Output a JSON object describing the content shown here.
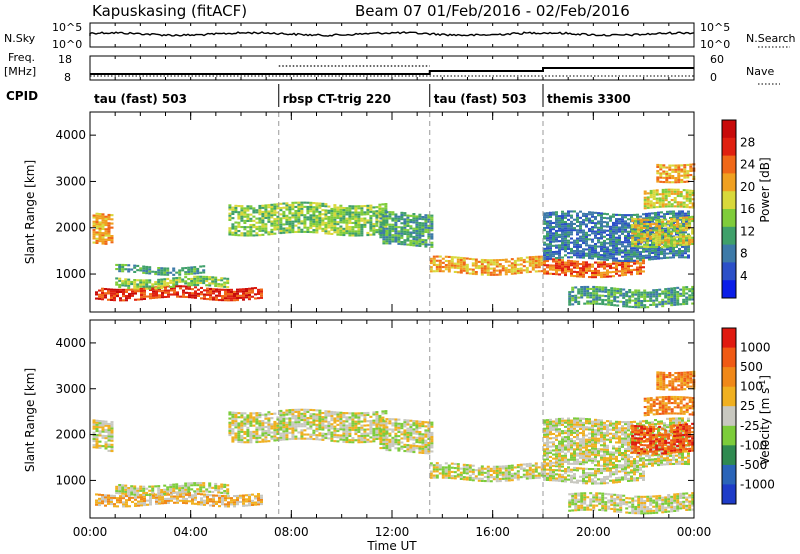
{
  "header": {
    "station": "Kapuskasing (fitACF)",
    "beam": "Beam 07",
    "date_range": "01/Feb/2016 - 02/Feb/2016"
  },
  "top_panel": {
    "left_label": "N.Sky",
    "right_label": "N.Search",
    "left_ticks": [
      "10^5",
      "10^0"
    ],
    "right_ticks": [
      "10^5",
      "10^0"
    ]
  },
  "freq_panel": {
    "left_label_line1": "Freq.",
    "left_label_line2": "[MHz]",
    "right_label": "Nave",
    "left_ticks": [
      "18",
      "8"
    ],
    "right_ticks": [
      "60",
      "0"
    ]
  },
  "cpid": {
    "label": "CPID",
    "segments": [
      {
        "start_hour": 0.0,
        "text": "tau (fast) 503"
      },
      {
        "start_hour": 7.5,
        "text": "rbsp CT-trig 220"
      },
      {
        "start_hour": 13.5,
        "text": "tau (fast) 503"
      },
      {
        "start_hour": 18.0,
        "text": "themis 3300"
      }
    ]
  },
  "x_axis": {
    "label": "Time UT",
    "range_hours": [
      0,
      24
    ],
    "tick_hours": [
      0,
      4,
      8,
      12,
      16,
      20,
      24
    ],
    "tick_labels": [
      "00:00",
      "04:00",
      "08:00",
      "12:00",
      "16:00",
      "20:00",
      "00:00"
    ],
    "minor_step_hours": 1
  },
  "chart_data": [
    {
      "type": "heatmap",
      "quantity": "Power",
      "ylabel": "Slant Range [km]",
      "ylim": [
        180,
        4500
      ],
      "y_ticks": [
        1000,
        2000,
        3000,
        4000
      ],
      "colorbar": {
        "label": "Power [dB]",
        "ticks": [
          "4",
          "8",
          "12",
          "16",
          "20",
          "24",
          "28"
        ],
        "colors": [
          "#0b1ee8",
          "#2c50c8",
          "#3d7aa8",
          "#3fa06a",
          "#7fcc3a",
          "#d8d83a",
          "#f0a020",
          "#f06818",
          "#e02010",
          "#c80a0a"
        ]
      },
      "bands": [
        {
          "t0": 0.1,
          "t1": 0.9,
          "r0": 1650,
          "r1": 2300,
          "level": 6
        },
        {
          "t0": 0.2,
          "t1": 6.8,
          "r0": 450,
          "r1": 700,
          "level": 8
        },
        {
          "t0": 1.0,
          "t1": 5.5,
          "r0": 700,
          "r1": 900,
          "level": 4
        },
        {
          "t0": 1.0,
          "t1": 4.5,
          "r0": 1000,
          "r1": 1150,
          "level": 3
        },
        {
          "t0": 5.5,
          "t1": 11.8,
          "r0": 1850,
          "r1": 2500,
          "level": 4
        },
        {
          "t0": 11.5,
          "t1": 13.6,
          "r0": 1600,
          "r1": 2300,
          "level": 3
        },
        {
          "t0": 13.5,
          "t1": 18.0,
          "r0": 1000,
          "r1": 1350,
          "level": 6
        },
        {
          "t0": 18.0,
          "t1": 22.0,
          "r0": 950,
          "r1": 1300,
          "level": 7
        },
        {
          "t0": 18.0,
          "t1": 23.8,
          "r0": 1300,
          "r1": 2300,
          "level": 2
        },
        {
          "t0": 21.5,
          "t1": 24.0,
          "r0": 1600,
          "r1": 2200,
          "level": 5
        },
        {
          "t0": 22.0,
          "t1": 24.0,
          "r0": 2400,
          "r1": 2800,
          "level": 5
        },
        {
          "t0": 22.5,
          "t1": 24.0,
          "r0": 3000,
          "r1": 3400,
          "level": 6
        },
        {
          "t0": 19.0,
          "t1": 24.0,
          "r0": 300,
          "r1": 700,
          "level": 3
        }
      ]
    },
    {
      "type": "heatmap",
      "quantity": "Velocity",
      "ylabel": "Slant Range [km]",
      "ylim": [
        180,
        4500
      ],
      "y_ticks": [
        1000,
        2000,
        3000,
        4000
      ],
      "colorbar": {
        "label": "Velocity [m s^-1]",
        "ticks": [
          "1000",
          "500",
          "100",
          "25",
          "-25",
          "-100",
          "-500",
          "-1000"
        ],
        "colors": [
          "#1e3cc8",
          "#2a64b8",
          "#2f8a50",
          "#7ccc3a",
          "#c8c8c0",
          "#f0b020",
          "#f08818",
          "#f05a14",
          "#e01a10"
        ]
      },
      "bands": [
        {
          "t0": 0.1,
          "t1": 0.9,
          "r0": 1650,
          "r1": 2300,
          "level": 4
        },
        {
          "t0": 0.2,
          "t1": 6.8,
          "r0": 450,
          "r1": 700,
          "level": 5
        },
        {
          "t0": 1.0,
          "t1": 5.5,
          "r0": 700,
          "r1": 900,
          "level": 4
        },
        {
          "t0": 5.5,
          "t1": 11.8,
          "r0": 1850,
          "r1": 2500,
          "level": 4
        },
        {
          "t0": 11.5,
          "t1": 13.6,
          "r0": 1600,
          "r1": 2300,
          "level": 4
        },
        {
          "t0": 13.5,
          "t1": 18.0,
          "r0": 1000,
          "r1": 1350,
          "level": 4
        },
        {
          "t0": 18.0,
          "t1": 22.0,
          "r0": 950,
          "r1": 1300,
          "level": 4
        },
        {
          "t0": 18.0,
          "t1": 23.8,
          "r0": 1300,
          "r1": 2300,
          "level": 4
        },
        {
          "t0": 21.5,
          "t1": 24.0,
          "r0": 1600,
          "r1": 2200,
          "level": 7
        },
        {
          "t0": 22.0,
          "t1": 24.0,
          "r0": 2400,
          "r1": 2800,
          "level": 6
        },
        {
          "t0": 22.5,
          "t1": 24.0,
          "r0": 3000,
          "r1": 3400,
          "level": 6
        },
        {
          "t0": 19.0,
          "t1": 24.0,
          "r0": 300,
          "r1": 700,
          "level": 4
        }
      ]
    }
  ]
}
